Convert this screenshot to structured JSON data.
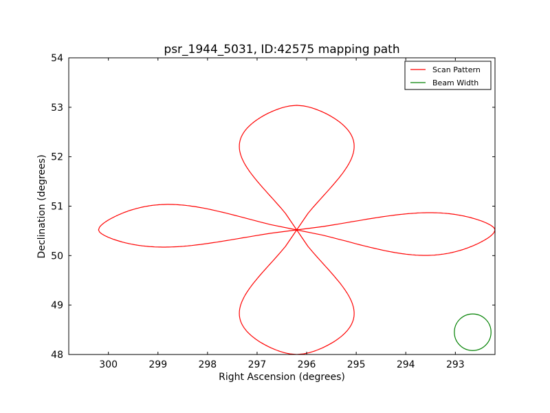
{
  "chart_data": {
    "type": "line",
    "title": "psr_1944_5031, ID:42575 mapping path",
    "xlabel": "Right Ascension (degrees)",
    "ylabel": "Declination (degrees)",
    "xlim": [
      300.8,
      292.2
    ],
    "ylim": [
      48,
      54
    ],
    "x_inverted": true,
    "xticks": [
      300,
      299,
      298,
      297,
      296,
      295,
      294,
      293
    ],
    "yticks": [
      48,
      49,
      50,
      51,
      52,
      53,
      54
    ],
    "grid": false,
    "legend_placement": "top-right",
    "series": [
      {
        "name": "Scan Pattern",
        "color": "#ff0000",
        "shape": "four-lobed rosette",
        "center": [
          296.2,
          50.52
        ],
        "horizontal_lobe_reach": 4.0,
        "vertical_lobe_reach": 2.52,
        "horizontal_lobe_halfwidth": 0.36,
        "vertical_lobe_halfwidth": 1.15
      },
      {
        "name": "Beam Width",
        "color": "#008000",
        "shape": "circle",
        "center": [
          292.65,
          48.45
        ],
        "radius_deg": 0.37
      }
    ]
  }
}
